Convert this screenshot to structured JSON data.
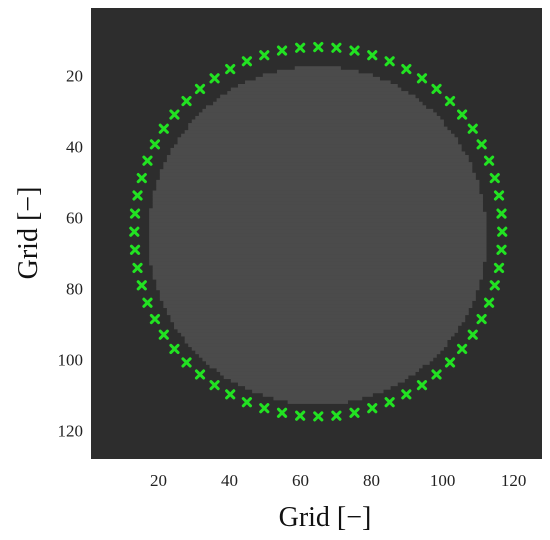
{
  "chart_data": {
    "type": "scatter",
    "title": "",
    "xlabel": "Grid [−]",
    "ylabel": "Grid [−]",
    "xlim": [
      1,
      128
    ],
    "ylim": [
      1,
      128
    ],
    "y_inverted": true,
    "grid": false,
    "x_ticks": [
      20,
      40,
      60,
      80,
      100,
      120
    ],
    "y_ticks": [
      20,
      40,
      60,
      80,
      100,
      120
    ],
    "background": {
      "type": "image",
      "outer_color": "#2d2d2d",
      "inner_color": "#4b4b4b",
      "disk": {
        "center_x": 64.8,
        "center_y": 65.0,
        "radius": 47.6
      }
    },
    "series": [
      {
        "marker": "x",
        "color": "#22e222",
        "points": [
          [
            65.0,
            12.0
          ],
          [
            70.1,
            12.2
          ],
          [
            75.2,
            13.0
          ],
          [
            80.2,
            14.3
          ],
          [
            85.1,
            16.0
          ],
          [
            89.8,
            18.2
          ],
          [
            94.2,
            20.8
          ],
          [
            98.3,
            23.8
          ],
          [
            102.1,
            27.2
          ],
          [
            105.5,
            31.0
          ],
          [
            108.5,
            35.0
          ],
          [
            111.0,
            39.4
          ],
          [
            113.1,
            44.0
          ],
          [
            114.7,
            48.9
          ],
          [
            115.9,
            53.8
          ],
          [
            116.6,
            58.9
          ],
          [
            116.8,
            64.0
          ],
          [
            116.6,
            69.1
          ],
          [
            115.9,
            74.2
          ],
          [
            114.7,
            79.1
          ],
          [
            113.1,
            84.0
          ],
          [
            111.0,
            88.6
          ],
          [
            108.5,
            93.0
          ],
          [
            105.5,
            97.0
          ],
          [
            102.1,
            100.8
          ],
          [
            98.3,
            104.2
          ],
          [
            94.2,
            107.2
          ],
          [
            89.8,
            109.8
          ],
          [
            85.1,
            112.0
          ],
          [
            80.2,
            113.7
          ],
          [
            75.2,
            115.0
          ],
          [
            70.1,
            115.8
          ],
          [
            65.0,
            116.0
          ],
          [
            59.9,
            115.8
          ],
          [
            54.8,
            115.0
          ],
          [
            49.8,
            113.7
          ],
          [
            44.9,
            112.0
          ],
          [
            40.2,
            109.8
          ],
          [
            35.8,
            107.2
          ],
          [
            31.7,
            104.2
          ],
          [
            27.9,
            100.8
          ],
          [
            24.5,
            97.0
          ],
          [
            21.5,
            93.0
          ],
          [
            19.0,
            88.6
          ],
          [
            16.9,
            84.0
          ],
          [
            15.3,
            79.1
          ],
          [
            14.1,
            74.2
          ],
          [
            13.4,
            69.1
          ],
          [
            13.2,
            64.0
          ],
          [
            13.4,
            58.9
          ],
          [
            14.1,
            53.8
          ],
          [
            15.3,
            48.9
          ],
          [
            16.9,
            44.0
          ],
          [
            19.0,
            39.4
          ],
          [
            21.5,
            35.0
          ],
          [
            24.5,
            31.0
          ],
          [
            27.9,
            27.2
          ],
          [
            31.7,
            23.8
          ],
          [
            35.8,
            20.8
          ],
          [
            40.2,
            18.2
          ],
          [
            44.9,
            16.0
          ],
          [
            49.8,
            14.3
          ],
          [
            54.8,
            13.0
          ],
          [
            59.9,
            12.2
          ]
        ]
      }
    ]
  }
}
